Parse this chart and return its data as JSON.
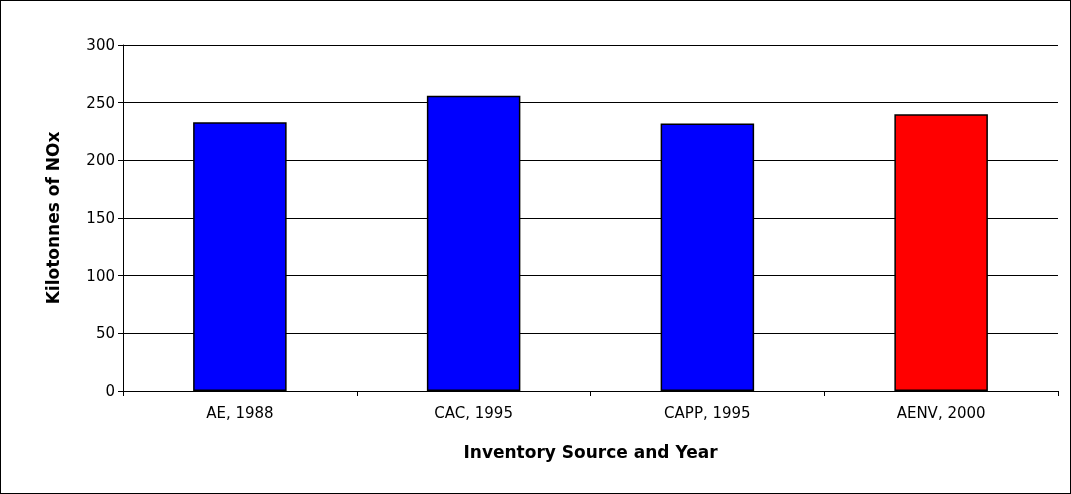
{
  "chart_data": {
    "type": "bar",
    "xlabel": "Inventory Source and Year",
    "ylabel": "Kilotonnes of NOx",
    "categories": [
      "AE, 1988",
      "CAC, 1995",
      "CAPP, 1995",
      "AENV, 2000"
    ],
    "values": [
      233,
      256,
      232,
      240
    ],
    "colors": [
      "#0000ff",
      "#0000ff",
      "#0000ff",
      "#ff0000"
    ],
    "ylim": [
      0,
      300
    ],
    "yticks": [
      0,
      50,
      100,
      150,
      200,
      250,
      300
    ],
    "grid": "y"
  }
}
